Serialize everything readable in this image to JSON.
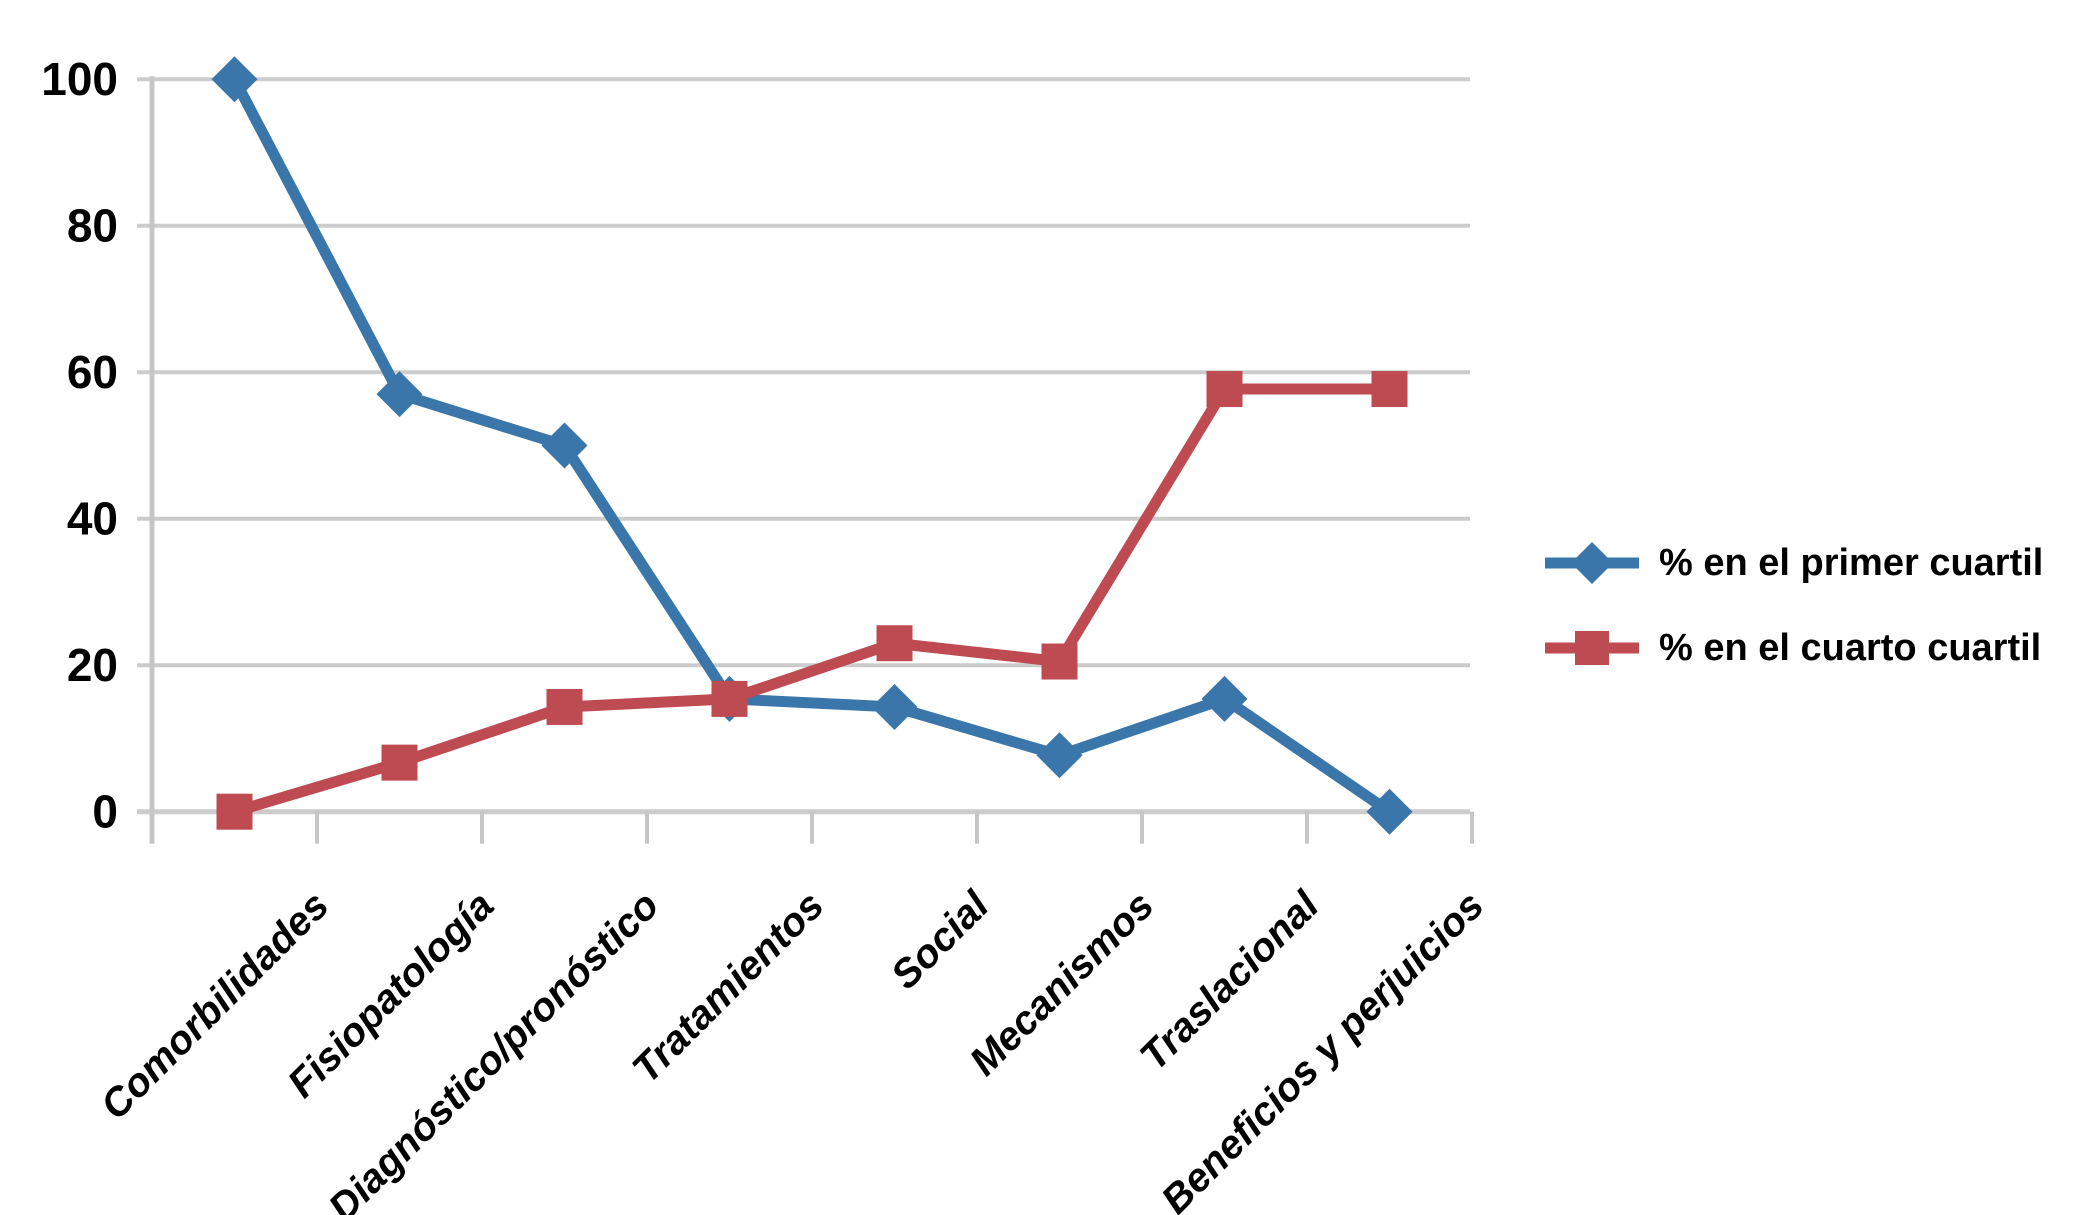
{
  "chart_data": {
    "type": "line",
    "title": "",
    "xlabel": "",
    "ylabel": "",
    "categories": [
      "Comorbilidades",
      "Fisiopatología",
      "Diagnóstico/pronóstico",
      "Tratamientos",
      "Social",
      "Mecanismos",
      "Traslacional",
      "Beneficios y perjuicios"
    ],
    "series": [
      {
        "name": "% en el primer cuartil",
        "values": [
          100,
          57,
          50,
          15.4,
          14.3,
          7.7,
          15.4,
          0
        ],
        "color": "#3a76aa",
        "marker": "diamond"
      },
      {
        "name": "% en el cuarto cuartil",
        "values": [
          0,
          6.7,
          14.3,
          15.4,
          23,
          20.5,
          57.7,
          57.7
        ],
        "color": "#be4b52",
        "marker": "square"
      }
    ],
    "yticks": [
      0,
      20,
      40,
      60,
      80,
      100
    ],
    "ylim": [
      0,
      100
    ],
    "grid": "horizontal",
    "gridline_color": "#cccccc",
    "axis_color": "#c6c6c6",
    "text_color": "#000000",
    "background_color": "#ffffff",
    "legend_position": "right",
    "x_label_rotation_deg": -45
  }
}
